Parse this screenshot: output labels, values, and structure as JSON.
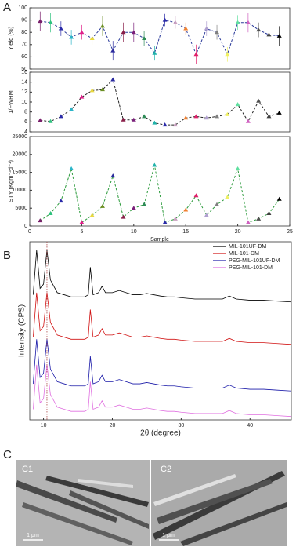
{
  "panel_labels": [
    "A",
    "B",
    "C"
  ],
  "chart_data": [
    {
      "type": "line",
      "ylabel": "Yield (%)",
      "x": [
        1,
        2,
        3,
        4,
        5,
        6,
        7,
        8,
        9,
        10,
        11,
        12,
        13,
        14,
        15,
        16,
        17,
        18,
        19,
        20,
        21,
        22,
        23,
        24
      ],
      "values": [
        89,
        88,
        83,
        76,
        80,
        75,
        85,
        65,
        80,
        80,
        75,
        63,
        90,
        88,
        83,
        62,
        83,
        80,
        62,
        88,
        88,
        82,
        78,
        77
      ],
      "errors": [
        8,
        8,
        6,
        6,
        6,
        5,
        8,
        8,
        8,
        8,
        6,
        6,
        5,
        5,
        5,
        8,
        6,
        6,
        6,
        6,
        8,
        6,
        6,
        8
      ],
      "colors": [
        "#7a1f6b",
        "#2ec27e",
        "#2a2aa8",
        "#2bb5c8",
        "#e0208a",
        "#e8d840",
        "#6b8e23",
        "#2a2a9e",
        "#8a1f4a",
        "#7a1f7a",
        "#2e8b57",
        "#20b2aa",
        "#2a2aa8",
        "#c9a0c0",
        "#f08030",
        "#e0206a",
        "#b0a0d0",
        "#808080",
        "#f0f060",
        "#60e0a0",
        "#d060c0",
        "#505050",
        "#404040",
        "#000000"
      ],
      "line_color": "#2a3a9a",
      "xlim": [
        0,
        25
      ],
      "ylim": [
        50,
        100
      ],
      "yticks": [
        50,
        60,
        70,
        80,
        90,
        100
      ]
    },
    {
      "type": "line",
      "ylabel": "1/FWHM",
      "x": [
        1,
        2,
        3,
        4,
        5,
        6,
        7,
        8,
        9,
        10,
        11,
        12,
        13,
        14,
        15,
        16,
        17,
        18,
        19,
        20,
        21,
        22,
        23,
        24
      ],
      "values": [
        6.3,
        6.1,
        7.1,
        8.5,
        11,
        12.3,
        12.5,
        14.5,
        6.4,
        6.4,
        7.1,
        5.8,
        5.4,
        5.4,
        6.8,
        7.1,
        6.8,
        7.1,
        7.5,
        9.5,
        6.1,
        10.2,
        7.1,
        7.8
      ],
      "colors": [
        "#7a1f6b",
        "#2ec27e",
        "#2a2aa8",
        "#2bb5c8",
        "#e0208a",
        "#e8d840",
        "#6b8e23",
        "#2a2a9e",
        "#8a1f4a",
        "#7a1f7a",
        "#2e8b57",
        "#20b2aa",
        "#2a2aa8",
        "#c9a0c0",
        "#f08030",
        "#e0206a",
        "#b0a0d0",
        "#808080",
        "#f0f060",
        "#60e0a0",
        "#d060c0",
        "#505050",
        "#404040",
        "#000000"
      ],
      "line_color": "#222222",
      "xlim": [
        0,
        25
      ],
      "ylim": [
        4,
        16
      ],
      "yticks": [
        4,
        6,
        8,
        10,
        12,
        14,
        16
      ]
    },
    {
      "type": "line",
      "ylabel": "STY (Kgm⁻³d⁻¹)",
      "xlabel": "Sample",
      "x": [
        1,
        2,
        3,
        4,
        5,
        6,
        7,
        8,
        9,
        10,
        11,
        12,
        13,
        14,
        15,
        16,
        17,
        18,
        19,
        20,
        21,
        22,
        23,
        24
      ],
      "values": [
        1500,
        3500,
        7000,
        16000,
        1000,
        3000,
        5500,
        14000,
        2500,
        5000,
        6000,
        17000,
        1000,
        2000,
        4500,
        8500,
        3000,
        6000,
        8000,
        16000,
        1000,
        2000,
        3500,
        7500
      ],
      "colors": [
        "#7a1f6b",
        "#2ec27e",
        "#2a2aa8",
        "#2bb5c8",
        "#e0208a",
        "#e8d840",
        "#6b8e23",
        "#2a2a9e",
        "#8a1f4a",
        "#7a1f7a",
        "#2e8b57",
        "#20b2aa",
        "#2a2aa8",
        "#c9a0c0",
        "#f08030",
        "#e0206a",
        "#b0a0d0",
        "#808080",
        "#f0f060",
        "#60e0a0",
        "#d060c0",
        "#505050",
        "#404040",
        "#000000"
      ],
      "line_color": "#2a9a3a",
      "xlim": [
        0,
        25
      ],
      "ylim": [
        0,
        25000
      ],
      "yticks": [
        0,
        5000,
        10000,
        15000,
        20000,
        25000
      ],
      "xticks": [
        0,
        5,
        10,
        15,
        20,
        25
      ]
    },
    {
      "type": "line",
      "ylabel": "Intensity (CPS)",
      "xlabel": "2θ (degree)",
      "x": [
        8.5,
        9,
        9.5,
        10,
        10.5,
        11,
        12,
        13,
        14,
        15,
        16,
        16.5,
        16.8,
        17.2,
        18,
        18.5,
        19,
        20,
        21,
        22,
        23,
        24,
        25,
        26,
        27,
        28,
        29,
        30,
        32,
        34,
        36,
        37,
        38,
        40,
        42,
        44,
        46
      ],
      "series": [
        {
          "name": "MIL-101UF-DM",
          "color": "#000000",
          "values": [
            2.95,
            4,
            3.1,
            3.2,
            4,
            3.3,
            3,
            2.95,
            2.9,
            2.9,
            2.9,
            2.95,
            3.6,
            2.95,
            3,
            3.15,
            3,
            3,
            3.05,
            3,
            2.95,
            2.95,
            2.98,
            2.95,
            2.92,
            2.9,
            2.9,
            2.88,
            2.85,
            2.85,
            2.85,
            2.92,
            2.85,
            2.82,
            2.82,
            2.8,
            2.78
          ]
        },
        {
          "name": "MIL-101-DM",
          "color": "#d01010",
          "values": [
            1.95,
            3,
            2.1,
            2.2,
            3,
            2.3,
            2,
            1.95,
            1.9,
            1.9,
            1.9,
            1.95,
            2.6,
            1.95,
            2,
            2.15,
            2,
            2,
            2.05,
            2,
            1.95,
            1.95,
            1.98,
            1.95,
            1.92,
            1.9,
            1.9,
            1.88,
            1.85,
            1.85,
            1.85,
            1.92,
            1.85,
            1.82,
            1.82,
            1.8,
            1.78
          ]
        },
        {
          "name": "PEG-MIL-101UF-DM",
          "color": "#1a1aa8",
          "values": [
            0.85,
            1.9,
            1,
            1.1,
            1.9,
            1.2,
            0.9,
            0.85,
            0.8,
            0.8,
            0.8,
            0.85,
            1.5,
            0.85,
            0.9,
            1.05,
            0.9,
            0.9,
            0.95,
            0.9,
            0.85,
            0.85,
            0.88,
            0.85,
            0.82,
            0.8,
            0.8,
            0.78,
            0.75,
            0.75,
            0.75,
            0.82,
            0.75,
            0.72,
            0.72,
            0.7,
            0.68
          ]
        },
        {
          "name": "PEG-MIL-101-DM",
          "color": "#e070e0",
          "values": [
            0.25,
            1.3,
            0.4,
            0.5,
            1.3,
            0.6,
            0.3,
            0.25,
            0.2,
            0.2,
            0.2,
            0.25,
            0.9,
            0.25,
            0.3,
            0.45,
            0.3,
            0.3,
            0.35,
            0.3,
            0.25,
            0.25,
            0.28,
            0.25,
            0.22,
            0.2,
            0.2,
            0.18,
            0.15,
            0.15,
            0.15,
            0.22,
            0.15,
            0.12,
            0.12,
            0.1,
            0.08
          ]
        }
      ],
      "vline_x": 10.5,
      "legend": "upper right",
      "xlim": [
        8,
        46
      ],
      "ylim": [
        0,
        4.2
      ],
      "xticks": [
        10,
        20,
        30,
        40
      ]
    }
  ],
  "images": [
    {
      "label": "C1",
      "scale_bar": "1 μm"
    },
    {
      "label": "C2",
      "scale_bar": "1 μm"
    }
  ]
}
